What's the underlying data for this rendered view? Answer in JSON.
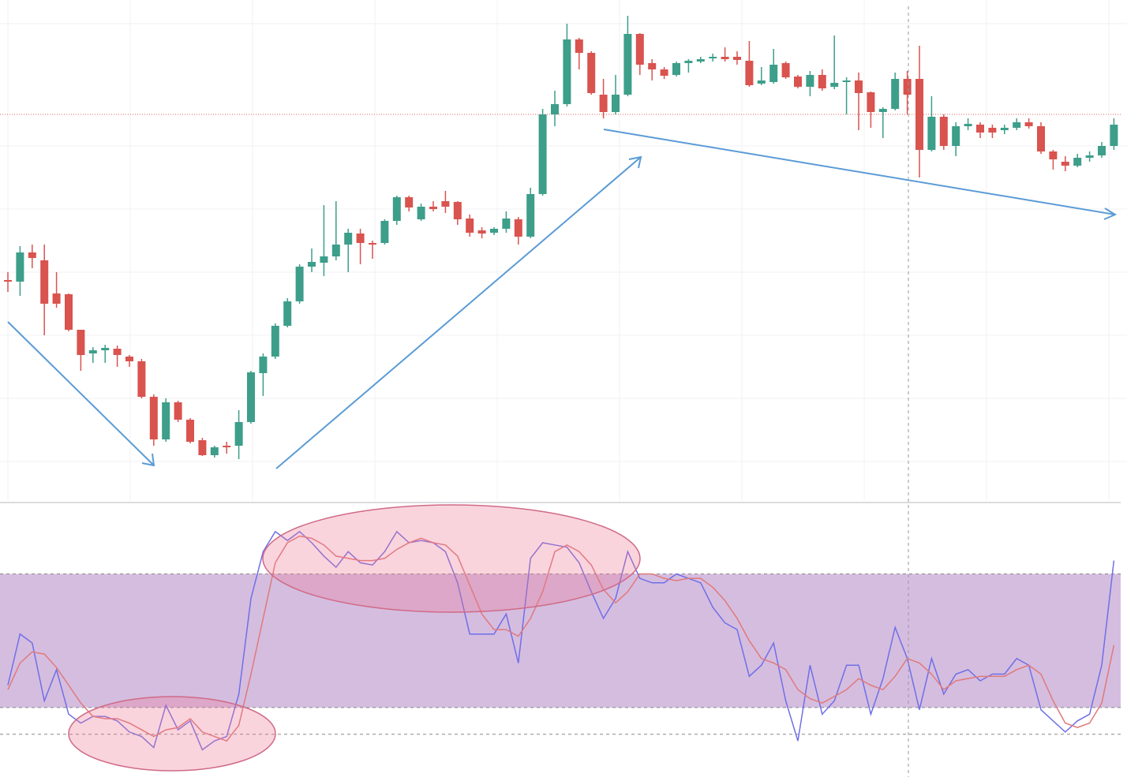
{
  "chart_data": [
    {
      "type": "candlestick",
      "open": [
        280,
        278,
        315,
        305,
        263,
        262,
        217,
        187,
        191,
        193,
        183,
        177,
        132,
        78,
        125,
        103,
        77,
        58,
        70,
        70,
        100,
        162,
        183,
        222,
        253,
        297,
        302,
        310,
        325,
        339,
        327,
        327,
        355,
        385,
        357,
        373,
        380,
        379,
        358,
        343,
        340,
        345,
        357,
        335,
        389,
        490,
        503,
        585,
        568,
        515,
        493,
        515,
        592,
        555,
        547,
        540,
        555,
        557,
        562,
        563,
        563,
        558,
        529,
        531,
        555,
        538,
        525,
        540,
        525,
        531,
        533,
        518,
        493,
        497,
        535,
        535,
        445,
        487,
        450,
        475,
        477,
        473,
        470,
        473,
        480,
        475,
        443,
        430,
        425,
        435,
        438,
        450
      ],
      "high": [
        290,
        323,
        325,
        325,
        290,
        263,
        217,
        195,
        198,
        197,
        185,
        180,
        135,
        130,
        127,
        105,
        80,
        70,
        75,
        115,
        165,
        187,
        225,
        257,
        300,
        320,
        375,
        380,
        345,
        345,
        330,
        357,
        387,
        387,
        377,
        380,
        393,
        380,
        363,
        347,
        347,
        367,
        360,
        397,
        497,
        520,
        605,
        587,
        570,
        535,
        540,
        615,
        593,
        560,
        550,
        557,
        560,
        563,
        567,
        575,
        570,
        583,
        550,
        573,
        557,
        540,
        545,
        547,
        590,
        537,
        543,
        519,
        499,
        543,
        545,
        577,
        513,
        490,
        480,
        485,
        480,
        477,
        477,
        485,
        485,
        480,
        445,
        437,
        440,
        443,
        455,
        485
      ],
      "low": [
        265,
        260,
        295,
        210,
        245,
        215,
        165,
        175,
        175,
        170,
        170,
        130,
        70,
        75,
        100,
        73,
        57,
        55,
        60,
        53,
        98,
        133,
        180,
        220,
        250,
        290,
        285,
        305,
        290,
        300,
        307,
        325,
        350,
        367,
        355,
        367,
        365,
        350,
        335,
        333,
        337,
        340,
        325,
        333,
        387,
        475,
        500,
        547,
        515,
        485,
        490,
        513,
        540,
        533,
        535,
        538,
        543,
        555,
        557,
        557,
        553,
        525,
        527,
        529,
        535,
        523,
        513,
        520,
        522,
        490,
        470,
        473,
        460,
        495,
        490,
        410,
        443,
        445,
        437,
        470,
        460,
        460,
        465,
        470,
        472,
        440,
        420,
        418,
        423,
        430,
        435,
        445
      ],
      "close": [
        278,
        315,
        308,
        250,
        250,
        217,
        185,
        191,
        194,
        185,
        177,
        132,
        78,
        125,
        103,
        75,
        58,
        68,
        68,
        100,
        163,
        183,
        222,
        253,
        297,
        303,
        310,
        325,
        340,
        327,
        325,
        355,
        385,
        372,
        373,
        370,
        373,
        357,
        340,
        339,
        345,
        358,
        335,
        389,
        490,
        503,
        585,
        568,
        517,
        493,
        515,
        592,
        553,
        547,
        539,
        555,
        558,
        560,
        563,
        560,
        559,
        527,
        533,
        553,
        537,
        525,
        540,
        523,
        530,
        533,
        517,
        493,
        497,
        535,
        515,
        445,
        487,
        450,
        475,
        478,
        467,
        467,
        473,
        480,
        475,
        443,
        433,
        425,
        435,
        438,
        450,
        477
      ],
      "ylim": [
        0,
        635
      ],
      "up_color": "#3d9e8a",
      "down_color": "#d9534f",
      "hline": {
        "value": 490,
        "color": "#e06666"
      }
    },
    {
      "type": "line",
      "series": [
        {
          "color": "#6f6fe6",
          "values": [
            30,
            53,
            49,
            23,
            37,
            17,
            13,
            16,
            16,
            14,
            9,
            7,
            2,
            21,
            10,
            14,
            1,
            5,
            7,
            26,
            69,
            90,
            99,
            95,
            99,
            94,
            88,
            83,
            90,
            85,
            84,
            90,
            99,
            94,
            95,
            94,
            90,
            76,
            53,
            53,
            53,
            62,
            40,
            87,
            94,
            93,
            92,
            85,
            72,
            60,
            69,
            90,
            78,
            76,
            76,
            80,
            78,
            76,
            65,
            58,
            55,
            34,
            39,
            49,
            23,
            5,
            39,
            17,
            23,
            39,
            39,
            17,
            33,
            56,
            42,
            19,
            42,
            26,
            35,
            37,
            32,
            35,
            35,
            42,
            39,
            19,
            14,
            9,
            14,
            17,
            39,
            86
          ]
        },
        {
          "color": "#e07a7a",
          "values": [
            28,
            40,
            45,
            44,
            38,
            30,
            22,
            16,
            15,
            15,
            13,
            10,
            7,
            10,
            11,
            15,
            9,
            7,
            5,
            12,
            35,
            60,
            85,
            94,
            97,
            96,
            93,
            88,
            87,
            86,
            86,
            87,
            91,
            94,
            96,
            94,
            93,
            88,
            75,
            62,
            55,
            55,
            52,
            60,
            72,
            90,
            93,
            90,
            84,
            73,
            67,
            72,
            80,
            80,
            78,
            77,
            78,
            78,
            74,
            68,
            60,
            50,
            42,
            40,
            37,
            28,
            24,
            22,
            25,
            28,
            33,
            30,
            28,
            34,
            42,
            40,
            35,
            28,
            32,
            33,
            34,
            34,
            34,
            37,
            39,
            35,
            23,
            13,
            11,
            13,
            22,
            48
          ]
        }
      ],
      "ylim": [
        -13,
        111
      ],
      "band": [
        20,
        80
      ],
      "band_color": "#d5bde0",
      "hlines": [
        80,
        20,
        8
      ]
    }
  ]
}
